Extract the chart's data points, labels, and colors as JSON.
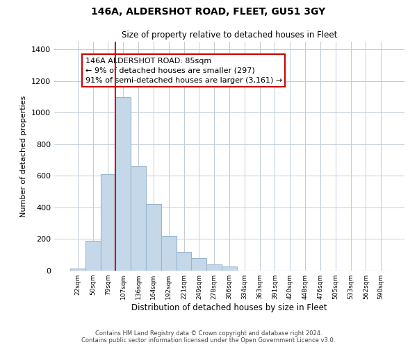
{
  "title": "146A, ALDERSHOT ROAD, FLEET, GU51 3GY",
  "subtitle": "Size of property relative to detached houses in Fleet",
  "xlabel": "Distribution of detached houses by size in Fleet",
  "ylabel": "Number of detached properties",
  "bar_color": "#c5d8ea",
  "bar_edge_color": "#9ab5ce",
  "bin_labels": [
    "22sqm",
    "50sqm",
    "79sqm",
    "107sqm",
    "136sqm",
    "164sqm",
    "192sqm",
    "221sqm",
    "249sqm",
    "278sqm",
    "306sqm",
    "334sqm",
    "363sqm",
    "391sqm",
    "420sqm",
    "448sqm",
    "476sqm",
    "505sqm",
    "533sqm",
    "562sqm",
    "590sqm"
  ],
  "bar_heights": [
    15,
    190,
    610,
    1100,
    665,
    420,
    220,
    120,
    80,
    40,
    28,
    0,
    0,
    0,
    0,
    0,
    0,
    0,
    0,
    0,
    0
  ],
  "ylim": [
    0,
    1450
  ],
  "yticks": [
    0,
    200,
    400,
    600,
    800,
    1000,
    1200,
    1400
  ],
  "vline_x": 2.5,
  "vline_color": "#cc0000",
  "annotation_line1": "146A ALDERSHOT ROAD: 85sqm",
  "annotation_line2": "← 9% of detached houses are smaller (297)",
  "annotation_line3": "91% of semi-detached houses are larger (3,161) →",
  "annotation_box_edge": "#cc0000",
  "footer_line1": "Contains HM Land Registry data © Crown copyright and database right 2024.",
  "footer_line2": "Contains public sector information licensed under the Open Government Licence v3.0.",
  "background_color": "#ffffff",
  "grid_color": "#c0ccd8"
}
